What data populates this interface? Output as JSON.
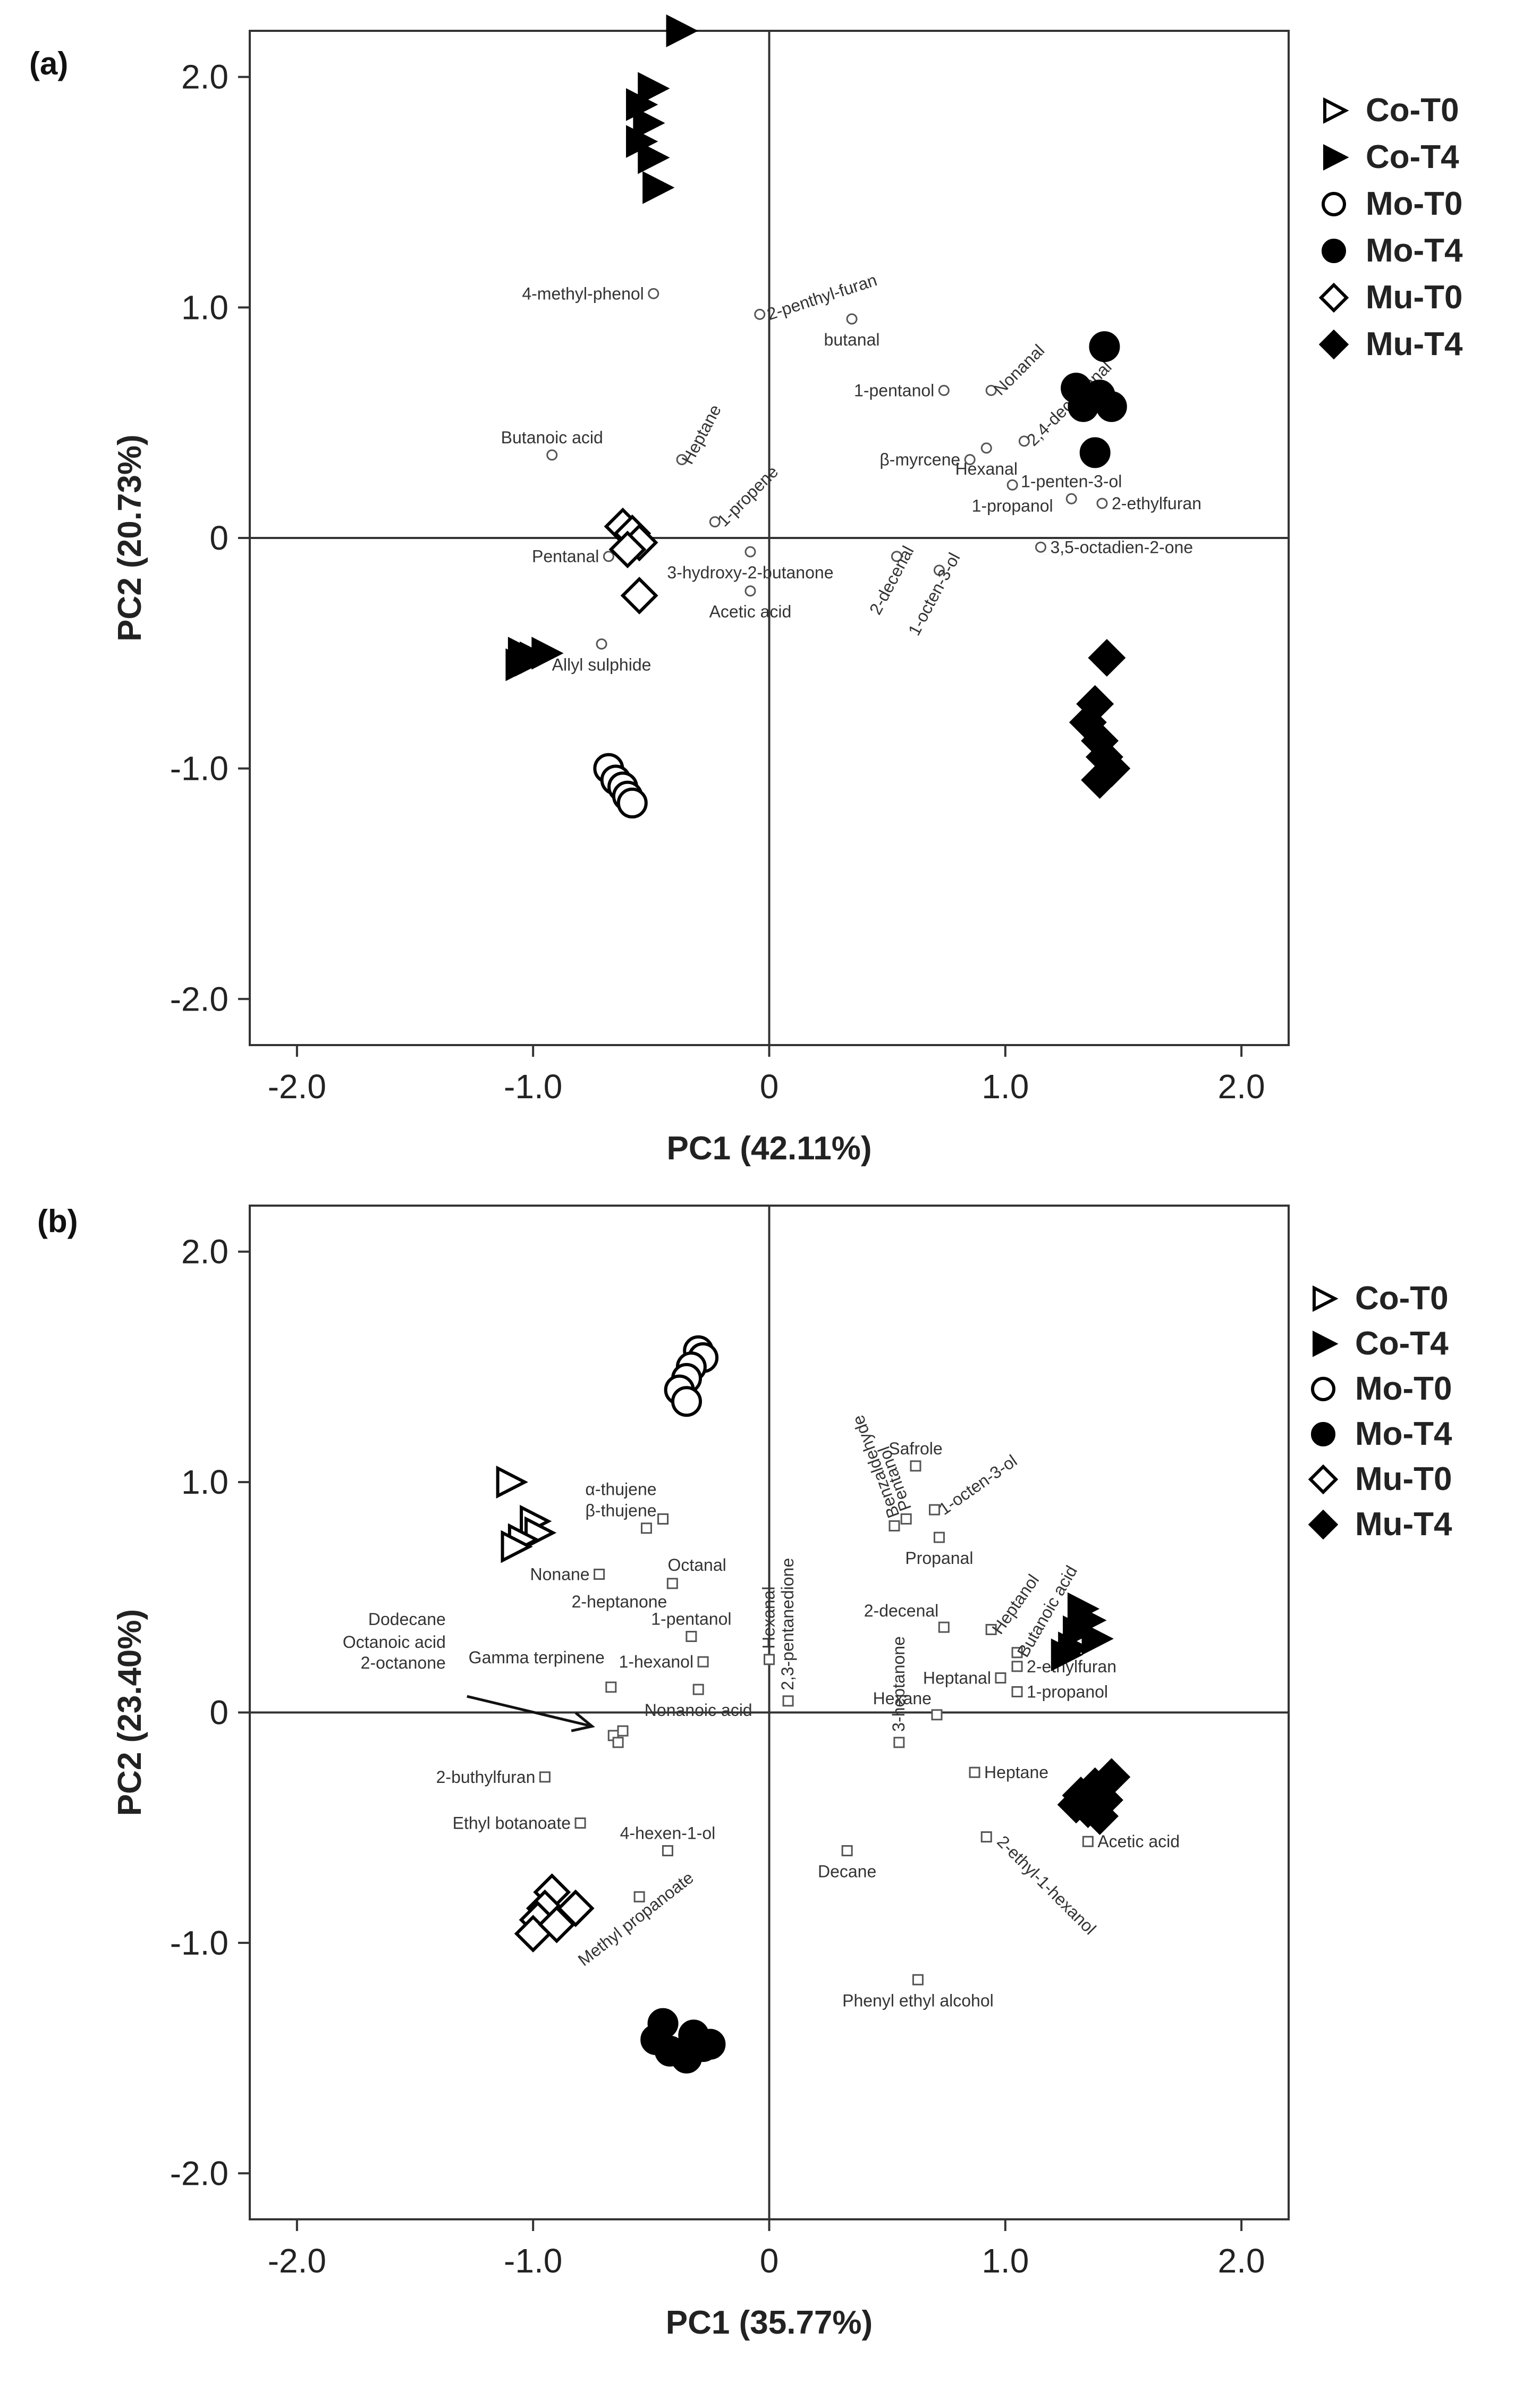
{
  "chart_data": [
    {
      "type": "scatter",
      "panel_label": "(a)",
      "xlabel": "PC1 (42.11%)",
      "ylabel": "PC2 (20.73%)",
      "xlim": [
        -2.2,
        2.2
      ],
      "ylim": [
        -2.2,
        2.2
      ],
      "x_ticks": [
        -2.0,
        -1.0,
        0,
        1.0,
        2.0
      ],
      "y_ticks": [
        -2.0,
        -1.0,
        0,
        1.0,
        2.0
      ],
      "x_tick_labels": [
        "-2.0",
        "-1.0",
        "0",
        "1.0",
        "2.0"
      ],
      "y_tick_labels": [
        "-2.0",
        "-1.0",
        "0",
        "1.0",
        "2.0"
      ],
      "grid": false,
      "legend_position": "right",
      "series": [
        {
          "name": "Co-T0",
          "marker": "triangle-open",
          "points": []
        },
        {
          "name": "Co-T4",
          "marker": "triangle-filled",
          "points": [
            [
              -0.38,
              2.2
            ],
            [
              -0.5,
              1.95
            ],
            [
              -0.55,
              1.88
            ],
            [
              -0.52,
              1.8
            ],
            [
              -0.55,
              1.72
            ],
            [
              -0.5,
              1.65
            ],
            [
              -0.48,
              1.52
            ],
            [
              -1.05,
              -0.5
            ],
            [
              -1.0,
              -0.52
            ],
            [
              -1.06,
              -0.55
            ],
            [
              -0.95,
              -0.5
            ],
            [
              -1.02,
              -0.53
            ]
          ]
        },
        {
          "name": "Mo-T0",
          "marker": "circle-open",
          "points": [
            [
              -0.68,
              -1.0
            ],
            [
              -0.65,
              -1.05
            ],
            [
              -0.62,
              -1.08
            ],
            [
              -0.6,
              -1.12
            ],
            [
              -0.58,
              -1.15
            ]
          ]
        },
        {
          "name": "Mo-T4",
          "marker": "circle-filled",
          "points": [
            [
              1.42,
              0.83
            ],
            [
              1.3,
              0.65
            ],
            [
              1.35,
              0.6
            ],
            [
              1.4,
              0.62
            ],
            [
              1.33,
              0.57
            ],
            [
              1.45,
              0.57
            ],
            [
              1.38,
              0.37
            ]
          ]
        },
        {
          "name": "Mu-T0",
          "marker": "diamond-open",
          "points": [
            [
              -0.62,
              0.05
            ],
            [
              -0.58,
              0.02
            ],
            [
              -0.55,
              -0.02
            ],
            [
              -0.6,
              -0.05
            ],
            [
              -0.55,
              -0.25
            ]
          ]
        },
        {
          "name": "Mu-T4",
          "marker": "diamond-filled",
          "points": [
            [
              1.43,
              -0.52
            ],
            [
              1.38,
              -0.72
            ],
            [
              1.35,
              -0.8
            ],
            [
              1.4,
              -0.88
            ],
            [
              1.42,
              -0.95
            ],
            [
              1.45,
              -1.0
            ],
            [
              1.4,
              -1.05
            ]
          ]
        }
      ],
      "variables": [
        {
          "label": "4-methyl-phenol",
          "x": -0.49,
          "y": 1.06,
          "side": "left",
          "angle": 0
        },
        {
          "label": "2-penthyl-furan",
          "x": -0.04,
          "y": 0.97,
          "side": "right",
          "angle": -18
        },
        {
          "label": "butanal",
          "x": 0.35,
          "y": 0.95,
          "side": "below",
          "angle": 0
        },
        {
          "label": "Nonanal",
          "x": 0.94,
          "y": 0.64,
          "side": "right",
          "angle": -45
        },
        {
          "label": "2,4-decadienal",
          "x": 1.08,
          "y": 0.42,
          "side": "right",
          "angle": -45
        },
        {
          "label": "1-pentanol",
          "x": 0.74,
          "y": 0.64,
          "side": "left",
          "angle": 0
        },
        {
          "label": "Butanoic acid",
          "x": -0.92,
          "y": 0.36,
          "side": "above",
          "angle": 0
        },
        {
          "label": "Heptane",
          "x": -0.37,
          "y": 0.34,
          "side": "right",
          "angle": -62
        },
        {
          "label": "1-propene",
          "x": -0.23,
          "y": 0.07,
          "side": "right",
          "angle": -45
        },
        {
          "label": "β-myrcene",
          "x": 0.85,
          "y": 0.34,
          "side": "left",
          "angle": 0
        },
        {
          "label": "Hexanal",
          "x": 0.92,
          "y": 0.39,
          "side": "below",
          "angle": 0
        },
        {
          "label": "1-penten-3-ol",
          "x": 1.28,
          "y": 0.17,
          "side": "above",
          "angle": 0
        },
        {
          "label": "1-propanol",
          "x": 1.03,
          "y": 0.23,
          "side": "below",
          "angle": 0
        },
        {
          "label": "2-ethylfuran",
          "x": 1.41,
          "y": 0.15,
          "side": "right",
          "angle": 0
        },
        {
          "label": "Pentanal",
          "x": -0.68,
          "y": -0.08,
          "side": "left",
          "angle": 0
        },
        {
          "label": "3-hydroxy-2-butanone",
          "x": -0.08,
          "y": -0.06,
          "side": "below",
          "angle": 0
        },
        {
          "label": "3,5-octadien-2-one",
          "x": 1.15,
          "y": -0.04,
          "side": "right",
          "angle": 0
        },
        {
          "label": "Acetic acid",
          "x": -0.08,
          "y": -0.23,
          "side": "below",
          "angle": 0
        },
        {
          "label": "2-decenal",
          "x": 0.54,
          "y": -0.08,
          "side": "below",
          "angle": -62
        },
        {
          "label": "1-octen-3-ol",
          "x": 0.72,
          "y": -0.14,
          "side": "below",
          "angle": -62
        },
        {
          "label": "Allyl sulphide",
          "x": -0.71,
          "y": -0.46,
          "side": "below",
          "angle": 0
        }
      ]
    },
    {
      "type": "scatter",
      "panel_label": "(b)",
      "xlabel": "PC1 (35.77%)",
      "ylabel": "PC2 (23.40%)",
      "xlim": [
        -2.2,
        2.2
      ],
      "ylim": [
        -2.2,
        2.2
      ],
      "x_ticks": [
        -2.0,
        -1.0,
        0,
        1.0,
        2.0
      ],
      "y_ticks": [
        -2.0,
        -1.0,
        0,
        1.0,
        2.0
      ],
      "x_tick_labels": [
        "-2.0",
        "-1.0",
        "0",
        "1.0",
        "2.0"
      ],
      "y_tick_labels": [
        "-2.0",
        "-1.0",
        "0",
        "1.0",
        "2.0"
      ],
      "grid": false,
      "legend_position": "right",
      "series": [
        {
          "name": "Co-T0",
          "marker": "triangle-open",
          "points": [
            [
              -1.1,
              1.0
            ],
            [
              -1.0,
              0.83
            ],
            [
              -0.98,
              0.78
            ],
            [
              -1.05,
              0.75
            ],
            [
              -1.08,
              0.72
            ]
          ]
        },
        {
          "name": "Co-T4",
          "marker": "triangle-filled",
          "points": [
            [
              1.32,
              0.45
            ],
            [
              1.35,
              0.4
            ],
            [
              1.3,
              0.35
            ],
            [
              1.38,
              0.32
            ],
            [
              1.28,
              0.28
            ],
            [
              1.25,
              0.25
            ]
          ]
        },
        {
          "name": "Mo-T0",
          "marker": "circle-open",
          "points": [
            [
              -0.3,
              1.57
            ],
            [
              -0.28,
              1.54
            ],
            [
              -0.33,
              1.5
            ],
            [
              -0.35,
              1.45
            ],
            [
              -0.38,
              1.4
            ],
            [
              -0.35,
              1.35
            ]
          ]
        },
        {
          "name": "Mo-T4",
          "marker": "circle-filled",
          "points": [
            [
              -0.45,
              -1.35
            ],
            [
              -0.48,
              -1.42
            ],
            [
              -0.42,
              -1.47
            ],
            [
              -0.35,
              -1.5
            ],
            [
              -0.28,
              -1.45
            ],
            [
              -0.25,
              -1.44
            ],
            [
              -0.32,
              -1.4
            ]
          ]
        },
        {
          "name": "Mu-T0",
          "marker": "diamond-open",
          "points": [
            [
              -0.92,
              -0.78
            ],
            [
              -0.95,
              -0.85
            ],
            [
              -0.98,
              -0.9
            ],
            [
              -1.0,
              -0.96
            ],
            [
              -0.9,
              -0.92
            ],
            [
              -0.82,
              -0.85
            ]
          ]
        },
        {
          "name": "Mu-T4",
          "marker": "diamond-filled",
          "points": [
            [
              1.45,
              -0.28
            ],
            [
              1.38,
              -0.32
            ],
            [
              1.32,
              -0.36
            ],
            [
              1.42,
              -0.38
            ],
            [
              1.35,
              -0.42
            ],
            [
              1.4,
              -0.45
            ],
            [
              1.3,
              -0.4
            ]
          ]
        }
      ],
      "variables": [
        {
          "label": "α-thujene",
          "x": -0.45,
          "y": 0.84,
          "side": "left-up",
          "angle": 0
        },
        {
          "label": "β-thujene",
          "x": -0.45,
          "y": 0.84,
          "side": "left-up2",
          "angle": 0
        },
        {
          "label": "Nonane",
          "x": -0.72,
          "y": 0.6,
          "side": "left",
          "angle": 0
        },
        {
          "label": "Octanal",
          "x": -0.52,
          "y": 0.8,
          "side": "below-right",
          "angle": 0
        },
        {
          "label": "2-heptanone",
          "x": -0.41,
          "y": 0.56,
          "side": "left-below",
          "angle": 0
        },
        {
          "label": "1-pentanol",
          "x": -0.33,
          "y": 0.33,
          "side": "above",
          "angle": 0
        },
        {
          "label": "1-hexanol",
          "x": -0.28,
          "y": 0.22,
          "side": "left",
          "angle": 0
        },
        {
          "label": "Dodecane",
          "x": -1.37,
          "y": 0.38,
          "side": "none",
          "angle": 0
        },
        {
          "label": "Octanoic acid",
          "x": -1.37,
          "y": 0.28,
          "side": "none",
          "angle": 0
        },
        {
          "label": "2-octanone",
          "x": -1.37,
          "y": 0.19,
          "side": "none",
          "angle": 0
        },
        {
          "label": "Gamma terpinene",
          "x": -0.67,
          "y": 0.11,
          "side": "left-up",
          "angle": 0
        },
        {
          "label": "Nonanoic acid",
          "x": -0.3,
          "y": 0.1,
          "side": "below",
          "angle": 0
        },
        {
          "label": "Hexanal",
          "x": 0.0,
          "y": 0.23,
          "side": "above-up",
          "angle": -90
        },
        {
          "label": "2,3-pentanedione",
          "x": 0.08,
          "y": 0.05,
          "side": "above-up",
          "angle": -90
        },
        {
          "label": "Safrole",
          "x": 0.62,
          "y": 1.07,
          "side": "above",
          "angle": 0
        },
        {
          "label": "Benzaldehyde",
          "x": 0.53,
          "y": 0.81,
          "side": "above-up",
          "angle": -110
        },
        {
          "label": "Pentanol",
          "x": 0.58,
          "y": 0.84,
          "side": "above-up",
          "angle": -110
        },
        {
          "label": "1-octen-3-ol",
          "x": 0.7,
          "y": 0.88,
          "side": "right",
          "angle": -35
        },
        {
          "label": "Propanal",
          "x": 0.72,
          "y": 0.76,
          "side": "below",
          "angle": 0
        },
        {
          "label": "2-decenal",
          "x": 0.74,
          "y": 0.37,
          "side": "above-left",
          "angle": 0
        },
        {
          "label": "Heptanol",
          "x": 0.94,
          "y": 0.36,
          "side": "right",
          "angle": -55
        },
        {
          "label": "Butanoic acid",
          "x": 1.05,
          "y": 0.26,
          "side": "right",
          "angle": -60
        },
        {
          "label": "3-heptanone",
          "x": 0.55,
          "y": -0.13,
          "side": "above-up",
          "angle": -90
        },
        {
          "label": "Heptanal",
          "x": 0.98,
          "y": 0.15,
          "side": "left",
          "angle": 0
        },
        {
          "label": "2-ethylfuran",
          "x": 1.05,
          "y": 0.2,
          "side": "right",
          "angle": 0
        },
        {
          "label": "Hexane",
          "x": 0.71,
          "y": -0.01,
          "side": "above-left",
          "angle": 0
        },
        {
          "label": "1-propanol",
          "x": 1.05,
          "y": 0.09,
          "side": "right",
          "angle": 0
        },
        {
          "label": "Heptane",
          "x": 0.87,
          "y": -0.26,
          "side": "right",
          "angle": 0
        },
        {
          "label": "Acetic acid",
          "x": 1.35,
          "y": -0.56,
          "side": "right",
          "angle": 0
        },
        {
          "label": "2-ethyl-1-hexanol",
          "x": 0.92,
          "y": -0.54,
          "side": "right",
          "angle": 45
        },
        {
          "label": "2-buthylfuran",
          "x": -0.95,
          "y": -0.28,
          "side": "left",
          "angle": 0
        },
        {
          "label": "Ethyl botanoate",
          "x": -0.8,
          "y": -0.48,
          "side": "left",
          "angle": 0
        },
        {
          "label": "4-hexen-1-ol",
          "x": -0.43,
          "y": -0.6,
          "side": "above",
          "angle": 0
        },
        {
          "label": "Methyl propanoate",
          "x": -0.55,
          "y": -0.8,
          "side": "below",
          "angle": -38
        },
        {
          "label": "Decane",
          "x": 0.33,
          "y": -0.6,
          "side": "below",
          "angle": 0
        },
        {
          "label": "Phenyl ethyl alcohol",
          "x": 0.63,
          "y": -1.16,
          "side": "below",
          "angle": 0
        }
      ],
      "unlabeled_variables": [
        [
          -0.66,
          -0.1
        ],
        [
          -0.62,
          -0.08
        ],
        [
          -0.64,
          -0.13
        ]
      ],
      "annotation_arrow": {
        "from": [
          -1.28,
          0.07
        ],
        "to": [
          -0.75,
          -0.06
        ]
      }
    }
  ]
}
